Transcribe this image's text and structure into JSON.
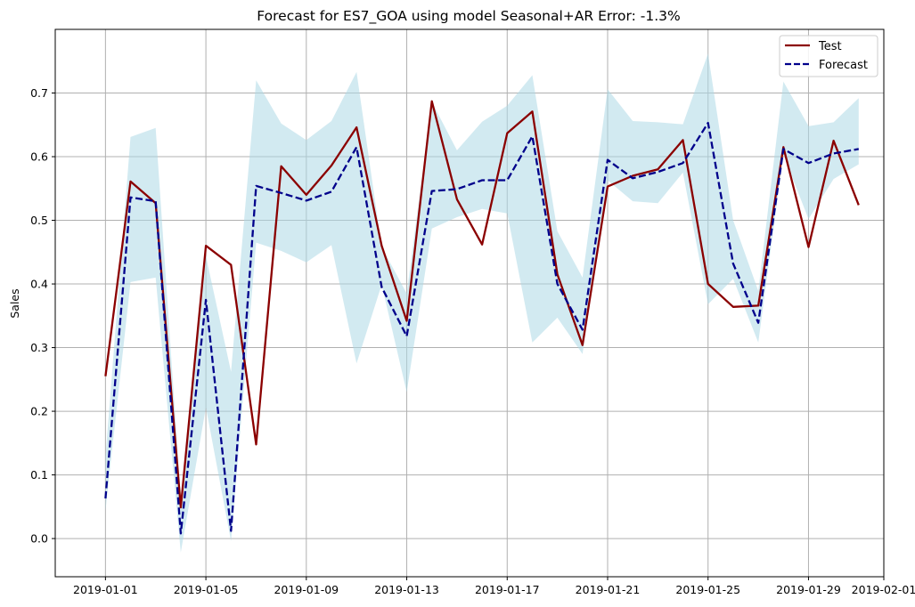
{
  "chart_data": {
    "type": "line",
    "title": "Forecast for ES7_GOA using model Seasonal+AR Error: -1.3%",
    "xlabel": "",
    "ylabel": "Sales",
    "xlim": [
      "2018-12-30",
      "2019-02-01"
    ],
    "ylim": [
      -0.06,
      0.8
    ],
    "grid": true,
    "legend_position": "top-right",
    "x_tick_labels": [
      "2019-01-01",
      "2019-01-05",
      "2019-01-09",
      "2019-01-13",
      "2019-01-17",
      "2019-01-21",
      "2019-01-25",
      "2019-01-29",
      "2019-02-01"
    ],
    "y_tick_labels": [
      "0.0",
      "0.1",
      "0.2",
      "0.3",
      "0.4",
      "0.5",
      "0.6",
      "0.7"
    ],
    "y_ticks": [
      0.0,
      0.1,
      0.2,
      0.3,
      0.4,
      0.5,
      0.6,
      0.7
    ],
    "x": [
      "2019-01-01",
      "2019-01-02",
      "2019-01-03",
      "2019-01-04",
      "2019-01-05",
      "2019-01-06",
      "2019-01-07",
      "2019-01-08",
      "2019-01-09",
      "2019-01-10",
      "2019-01-11",
      "2019-01-12",
      "2019-01-13",
      "2019-01-14",
      "2019-01-15",
      "2019-01-16",
      "2019-01-17",
      "2019-01-18",
      "2019-01-19",
      "2019-01-20",
      "2019-01-21",
      "2019-01-22",
      "2019-01-23",
      "2019-01-24",
      "2019-01-25",
      "2019-01-26",
      "2019-01-27",
      "2019-01-28",
      "2019-01-29",
      "2019-01-30",
      "2019-01-31"
    ],
    "series": [
      {
        "name": "Test",
        "color": "#8b0000",
        "style": "solid",
        "values": [
          0.255,
          0.561,
          0.527,
          0.049,
          0.46,
          0.43,
          0.148,
          0.585,
          0.54,
          0.586,
          0.646,
          0.46,
          0.342,
          0.687,
          0.533,
          0.462,
          0.637,
          0.671,
          0.415,
          0.304,
          0.553,
          0.57,
          0.58,
          0.626,
          0.4,
          0.364,
          0.366,
          0.615,
          0.458,
          0.625,
          0.524
        ]
      },
      {
        "name": "Forecast",
        "color": "#00008b",
        "style": "dashed",
        "values": [
          0.063,
          0.536,
          0.53,
          0.008,
          0.375,
          0.012,
          0.554,
          0.543,
          0.531,
          0.545,
          0.615,
          0.395,
          0.318,
          0.546,
          0.549,
          0.563,
          0.563,
          0.632,
          0.4,
          0.328,
          0.595,
          0.566,
          0.576,
          0.59,
          0.653,
          0.432,
          0.339,
          0.612,
          0.59,
          0.605,
          0.612
        ]
      }
    ],
    "interval": {
      "color": "#add8e6",
      "upper": [
        0.128,
        0.631,
        0.645,
        0.064,
        0.444,
        0.262,
        0.72,
        0.652,
        0.626,
        0.656,
        0.733,
        0.458,
        0.385,
        0.686,
        0.61,
        0.655,
        0.68,
        0.728,
        0.483,
        0.41,
        0.706,
        0.656,
        0.654,
        0.651,
        0.762,
        0.5,
        0.389,
        0.718,
        0.648,
        0.654,
        0.692
      ],
      "lower": [
        0.044,
        0.403,
        0.41,
        -0.022,
        0.206,
        -0.004,
        0.465,
        0.452,
        0.434,
        0.461,
        0.275,
        0.399,
        0.23,
        0.487,
        0.505,
        0.518,
        0.511,
        0.308,
        0.347,
        0.29,
        0.563,
        0.53,
        0.527,
        0.575,
        0.368,
        0.408,
        0.308,
        0.603,
        0.502,
        0.565,
        0.588
      ]
    }
  }
}
